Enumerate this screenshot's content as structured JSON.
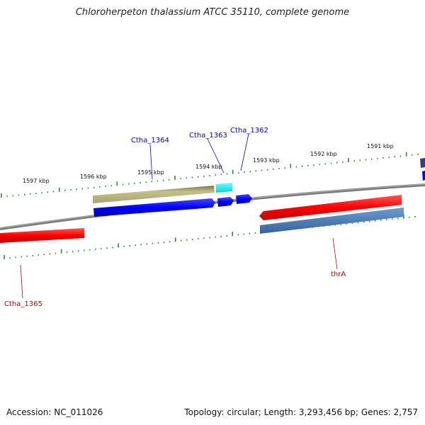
{
  "title": "Chloroherpeton thalassium ATCC 35110, complete genome",
  "footer": {
    "accession": "Accession: NC_011026",
    "summary": "Topology: circular; Length: 3,293,456 bp; Genes: 2,757"
  },
  "ruler": {
    "labels": [
      "1597 kbp",
      "1596 kbp",
      "1595 kbp",
      "1594 kbp",
      "1593 kbp",
      "1592 kbp",
      "1591 kbp"
    ]
  },
  "gene_labels": {
    "ctha_1364": "Ctha_1364",
    "ctha_1363": "Ctha_1363",
    "ctha_1362": "Ctha_1362",
    "ctha_1365": "Ctha_1365",
    "thra": "thrA"
  },
  "colors": {
    "backbone": "#8a8a8a",
    "tick": "#2e8b2e",
    "forward_label": "#0000cc",
    "reverse_label": "#cc0000",
    "red_feature": "#ff0000",
    "blue_feature": "#0000ff",
    "olive_feature": "#b8b478",
    "cyan_feature": "#00ffff",
    "steelblue_feature": "#4f7fb8",
    "navy_feature": "#3a3a8a"
  }
}
